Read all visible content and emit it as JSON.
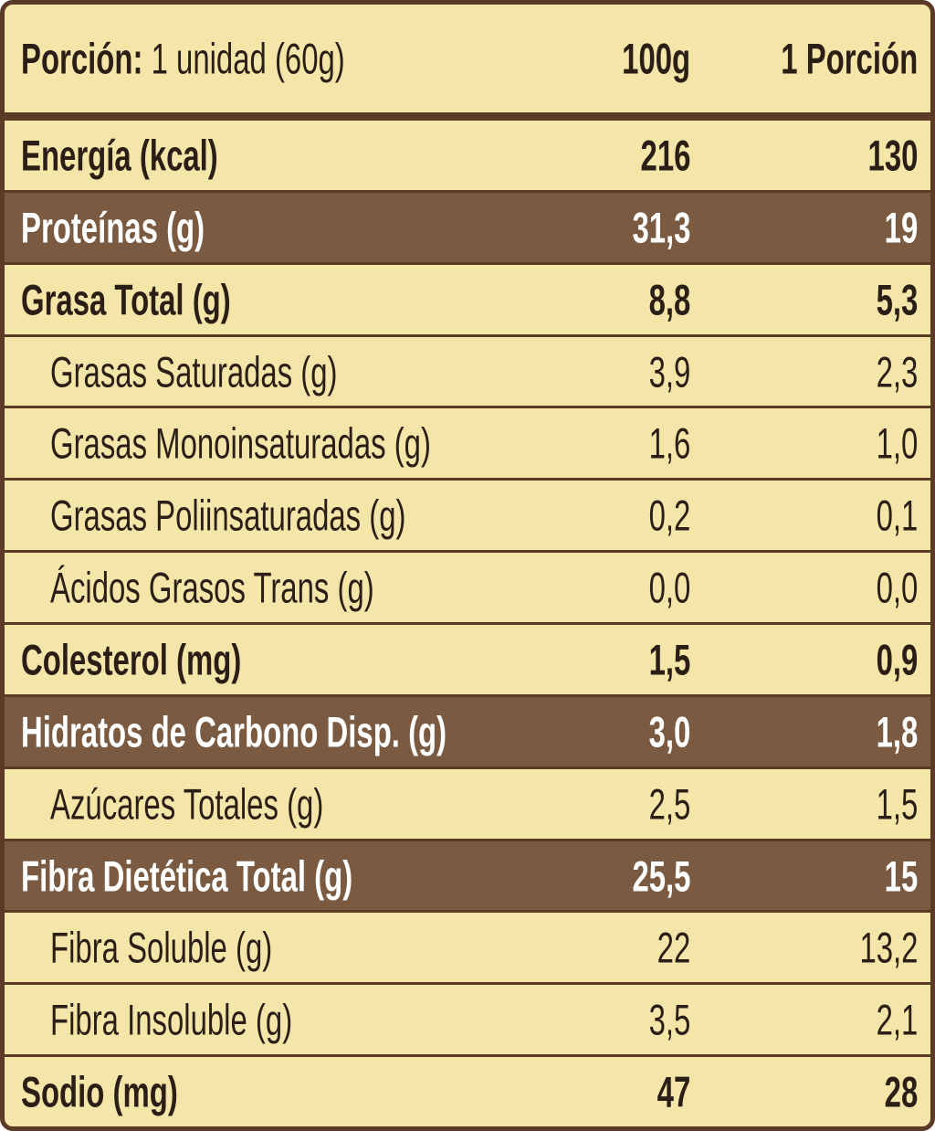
{
  "header": {
    "label": "Porción:",
    "portion": "1 unidad (60g)",
    "col1": "100g",
    "col2": "1 Porción"
  },
  "rows": [
    {
      "nutrient": "Energía (kcal)",
      "per_100g": "216",
      "per_portion": "130"
    },
    {
      "nutrient": "Proteínas (g)",
      "per_100g": "31,3",
      "per_portion": "19"
    },
    {
      "nutrient": "Grasa Total (g)",
      "per_100g": "8,8",
      "per_portion": "5,3"
    },
    {
      "nutrient": "Grasas Saturadas (g)",
      "per_100g": "3,9",
      "per_portion": "2,3"
    },
    {
      "nutrient": "Grasas Monoinsaturadas (g)",
      "per_100g": "1,6",
      "per_portion": "1,0"
    },
    {
      "nutrient": "Grasas Poliinsaturadas (g)",
      "per_100g": "0,2",
      "per_portion": "0,1"
    },
    {
      "nutrient": "Ácidos Grasos Trans (g)",
      "per_100g": "0,0",
      "per_portion": "0,0"
    },
    {
      "nutrient": "Colesterol (mg)",
      "per_100g": "1,5",
      "per_portion": "0,9"
    },
    {
      "nutrient": "Hidratos de Carbono Disp. (g)",
      "per_100g": "3,0",
      "per_portion": "1,8"
    },
    {
      "nutrient": "Azúcares Totales (g)",
      "per_100g": "2,5",
      "per_portion": "1,5"
    },
    {
      "nutrient": "Fibra Dietética Total (g)",
      "per_100g": "25,5",
      "per_portion": "15"
    },
    {
      "nutrient": "Fibra Soluble (g)",
      "per_100g": "22",
      "per_portion": "13,2"
    },
    {
      "nutrient": "Fibra Insoluble (g)",
      "per_100g": "3,5",
      "per_portion": "2,1"
    },
    {
      "nutrient": "Sodio (mg)",
      "per_100g": "47",
      "per_portion": "28"
    }
  ]
}
